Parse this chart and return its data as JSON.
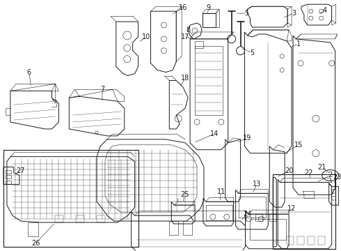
{
  "bg_color": "#ffffff",
  "line_color": "#1a1a1a",
  "fig_width": 4.9,
  "fig_height": 3.6,
  "dpi": 100,
  "label_font_size": 7.0
}
